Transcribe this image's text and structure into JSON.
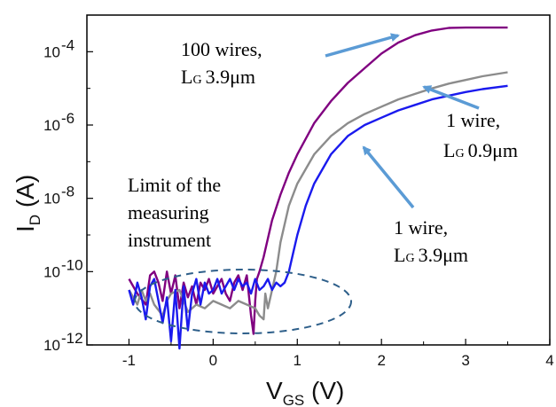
{
  "chart_data": {
    "type": "line",
    "y_scale": "log",
    "xlim": [
      -1.5,
      4
    ],
    "ylim_log10": [
      -12,
      -3
    ],
    "x_ticks": [
      {
        "value": -1,
        "label": "-1"
      },
      {
        "value": 0,
        "label": "0"
      },
      {
        "value": 1,
        "label": "1"
      },
      {
        "value": 2,
        "label": "2"
      },
      {
        "value": 3,
        "label": "3"
      },
      {
        "value": 4,
        "label": "4"
      }
    ],
    "y_ticks": [
      {
        "exp": -12,
        "base": "10",
        "sup": "-12"
      },
      {
        "exp": -10,
        "base": "10",
        "sup": "-10"
      },
      {
        "exp": -8,
        "base": "10",
        "sup": "-8"
      },
      {
        "exp": -6,
        "base": "10",
        "sup": "-6"
      },
      {
        "exp": -4,
        "base": "10",
        "sup": "-4"
      }
    ],
    "xlabel": {
      "main": "V",
      "sub": "GS",
      "unit": " (V)"
    },
    "ylabel": {
      "main": "I",
      "sub": "D",
      "unit": " (A)"
    },
    "series": [
      {
        "color": "#800080",
        "points": [
          [
            -1.0,
            -10.2
          ],
          [
            -0.9,
            -10.6
          ],
          [
            -0.8,
            -10.9
          ],
          [
            -0.75,
            -10.1
          ],
          [
            -0.7,
            -10.0
          ],
          [
            -0.65,
            -10.3
          ],
          [
            -0.6,
            -10.8
          ],
          [
            -0.55,
            -10.0
          ],
          [
            -0.5,
            -10.6
          ],
          [
            -0.45,
            -10.1
          ],
          [
            -0.4,
            -11.0
          ],
          [
            -0.35,
            -10.3
          ],
          [
            -0.3,
            -10.7
          ],
          [
            -0.25,
            -10.4
          ],
          [
            -0.2,
            -10.9
          ],
          [
            -0.15,
            -10.3
          ],
          [
            -0.1,
            -10.5
          ],
          [
            -0.05,
            -10.2
          ],
          [
            0.0,
            -10.6
          ],
          [
            0.05,
            -10.4
          ],
          [
            0.1,
            -10.2
          ],
          [
            0.15,
            -10.6
          ],
          [
            0.2,
            -10.8
          ],
          [
            0.25,
            -10.3
          ],
          [
            0.3,
            -10.1
          ],
          [
            0.35,
            -10.5
          ],
          [
            0.4,
            -10.1
          ],
          [
            0.45,
            -11.2
          ],
          [
            0.48,
            -11.7
          ],
          [
            0.5,
            -10.8
          ],
          [
            0.52,
            -10.2
          ],
          [
            0.55,
            -10.0
          ],
          [
            0.6,
            -9.6
          ],
          [
            0.7,
            -8.6
          ],
          [
            0.8,
            -7.9
          ],
          [
            0.9,
            -7.3
          ],
          [
            1.0,
            -6.8
          ],
          [
            1.2,
            -5.95
          ],
          [
            1.4,
            -5.35
          ],
          [
            1.6,
            -4.85
          ],
          [
            1.8,
            -4.45
          ],
          [
            2.0,
            -4.05
          ],
          [
            2.2,
            -3.75
          ],
          [
            2.4,
            -3.55
          ],
          [
            2.6,
            -3.42
          ],
          [
            2.8,
            -3.35
          ],
          [
            3.0,
            -3.34
          ],
          [
            3.2,
            -3.34
          ],
          [
            3.5,
            -3.34
          ]
        ]
      },
      {
        "color": "#8c8c8c",
        "points": [
          [
            -1.0,
            -10.5
          ],
          [
            -0.9,
            -10.9
          ],
          [
            -0.85,
            -10.5
          ],
          [
            -0.8,
            -10.8
          ],
          [
            -0.75,
            -10.6
          ],
          [
            -0.7,
            -10.9
          ],
          [
            -0.6,
            -11.2
          ],
          [
            -0.55,
            -10.8
          ],
          [
            -0.5,
            -10.6
          ],
          [
            -0.4,
            -10.5
          ],
          [
            -0.3,
            -11.1
          ],
          [
            -0.2,
            -10.9
          ],
          [
            -0.1,
            -11.0
          ],
          [
            0.0,
            -10.8
          ],
          [
            0.1,
            -10.9
          ],
          [
            0.2,
            -11.0
          ],
          [
            0.3,
            -10.8
          ],
          [
            0.4,
            -10.9
          ],
          [
            0.5,
            -11.0
          ],
          [
            0.55,
            -11.2
          ],
          [
            0.6,
            -11.3
          ],
          [
            0.62,
            -10.6
          ],
          [
            0.65,
            -11.0
          ],
          [
            0.7,
            -10.5
          ],
          [
            0.75,
            -10.0
          ],
          [
            0.8,
            -9.2
          ],
          [
            0.9,
            -8.2
          ],
          [
            1.0,
            -7.6
          ],
          [
            1.2,
            -6.8
          ],
          [
            1.4,
            -6.3
          ],
          [
            1.6,
            -5.95
          ],
          [
            1.8,
            -5.7
          ],
          [
            2.0,
            -5.5
          ],
          [
            2.2,
            -5.3
          ],
          [
            2.4,
            -5.15
          ],
          [
            2.6,
            -5.0
          ],
          [
            2.8,
            -4.87
          ],
          [
            3.0,
            -4.77
          ],
          [
            3.2,
            -4.67
          ],
          [
            3.5,
            -4.56
          ]
        ]
      },
      {
        "color": "#1a1aee",
        "points": [
          [
            -1.0,
            -10.5
          ],
          [
            -0.95,
            -10.9
          ],
          [
            -0.9,
            -10.3
          ],
          [
            -0.85,
            -10.7
          ],
          [
            -0.8,
            -11.3
          ],
          [
            -0.75,
            -10.4
          ],
          [
            -0.7,
            -10.2
          ],
          [
            -0.65,
            -10.8
          ],
          [
            -0.6,
            -11.4
          ],
          [
            -0.55,
            -10.7
          ],
          [
            -0.5,
            -11.9
          ],
          [
            -0.45,
            -10.5
          ],
          [
            -0.4,
            -12.1
          ],
          [
            -0.35,
            -10.4
          ],
          [
            -0.3,
            -11.6
          ],
          [
            -0.25,
            -10.6
          ],
          [
            -0.2,
            -10.2
          ],
          [
            -0.15,
            -10.9
          ],
          [
            -0.1,
            -10.3
          ],
          [
            -0.05,
            -10.6
          ],
          [
            0.0,
            -10.5
          ],
          [
            0.05,
            -10.2
          ],
          [
            0.1,
            -10.6
          ],
          [
            0.15,
            -10.4
          ],
          [
            0.2,
            -10.2
          ],
          [
            0.25,
            -10.5
          ],
          [
            0.3,
            -10.2
          ],
          [
            0.35,
            -10.4
          ],
          [
            0.4,
            -10.3
          ],
          [
            0.45,
            -10.6
          ],
          [
            0.5,
            -10.2
          ],
          [
            0.55,
            -10.5
          ],
          [
            0.6,
            -10.4
          ],
          [
            0.65,
            -10.2
          ],
          [
            0.7,
            -10.5
          ],
          [
            0.75,
            -10.3
          ],
          [
            0.8,
            -10.4
          ],
          [
            0.85,
            -10.3
          ],
          [
            0.9,
            -10.0
          ],
          [
            0.95,
            -9.5
          ],
          [
            1.0,
            -9.0
          ],
          [
            1.1,
            -8.2
          ],
          [
            1.2,
            -7.6
          ],
          [
            1.4,
            -6.8
          ],
          [
            1.6,
            -6.3
          ],
          [
            1.8,
            -6.0
          ],
          [
            2.0,
            -5.8
          ],
          [
            2.2,
            -5.6
          ],
          [
            2.4,
            -5.45
          ],
          [
            2.6,
            -5.3
          ],
          [
            2.8,
            -5.2
          ],
          [
            3.0,
            -5.1
          ],
          [
            3.2,
            -5.02
          ],
          [
            3.5,
            -4.93
          ]
        ]
      }
    ],
    "annotations": [
      {
        "lines": [
          "100 wires,"
        ],
        "lg": "3.9μm"
      },
      {
        "lines": [
          "1 wire,"
        ],
        "lg": "0.9μm"
      },
      {
        "lines": [
          "1 wire,"
        ],
        "lg": "3.9μm"
      },
      {
        "lines": [
          "Limit of the",
          "measuring",
          "instrument"
        ]
      }
    ],
    "lg_main": "L",
    "lg_sub": "G",
    "arrow_color": "#5b9bd5",
    "ellipse_color": "#2e5f8a"
  }
}
